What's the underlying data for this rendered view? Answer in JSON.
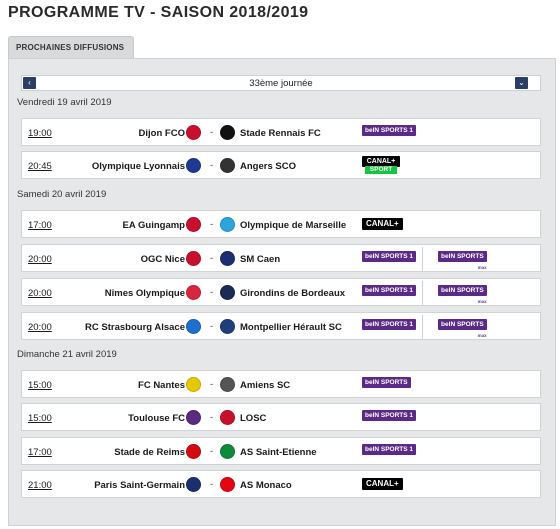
{
  "page": {
    "title": "PROGRAMME TV - SAISON 2018/2019",
    "tab_label": "PROCHAINES DIFFUSIONS"
  },
  "round": {
    "label": "33ème journée",
    "prev_icon": "chevron-left-icon",
    "next_icon": "chevron-down-icon"
  },
  "colors": {
    "nav_button": "#2c3e66",
    "panel_bg": "#e6e7e8",
    "bein": "#5b2a86",
    "canal": "#000000",
    "canal_sport_green": "#18c33f"
  },
  "days": [
    {
      "date": "Vendredi 19 avril 2019",
      "matches": [
        {
          "time": "19:00",
          "home": "Dijon FCO",
          "away": "Stade Rennais FC",
          "channels": [
            "beIN SPORTS 1"
          ]
        },
        {
          "time": "20:45",
          "home": "Olympique Lyonnais",
          "away": "Angers SCO",
          "channels": [
            "CANAL+ SPORT"
          ]
        }
      ]
    },
    {
      "date": "Samedi 20 avril 2019",
      "matches": [
        {
          "time": "17:00",
          "home": "EA Guingamp",
          "away": "Olympique de Marseille",
          "channels": [
            "CANAL+"
          ]
        },
        {
          "time": "20:00",
          "home": "OGC Nice",
          "away": "SM Caen",
          "channels": [
            "beIN SPORTS 1",
            "beIN SPORTS max"
          ]
        },
        {
          "time": "20:00",
          "home": "Nîmes Olympique",
          "away": "Girondins de Bordeaux",
          "channels": [
            "beIN SPORTS 1",
            "beIN SPORTS max"
          ]
        },
        {
          "time": "20:00",
          "home": "RC Strasbourg Alsace",
          "away": "Montpellier Hérault SC",
          "channels": [
            "beIN SPORTS 1",
            "beIN SPORTS max"
          ]
        }
      ]
    },
    {
      "date": "Dimanche 21 avril 2019",
      "matches": [
        {
          "time": "15:00",
          "home": "FC Nantes",
          "away": "Amiens SC",
          "channels": [
            "beIN SPORTS"
          ]
        },
        {
          "time": "15:00",
          "home": "Toulouse FC",
          "away": "LOSC",
          "channels": [
            "beIN SPORTS 1"
          ]
        },
        {
          "time": "17:00",
          "home": "Stade de Reims",
          "away": "AS Saint-Etienne",
          "channels": [
            "beIN SPORTS 1"
          ]
        },
        {
          "time": "21:00",
          "home": "Paris Saint-Germain",
          "away": "AS Monaco",
          "channels": [
            "CANAL+"
          ]
        }
      ]
    }
  ]
}
